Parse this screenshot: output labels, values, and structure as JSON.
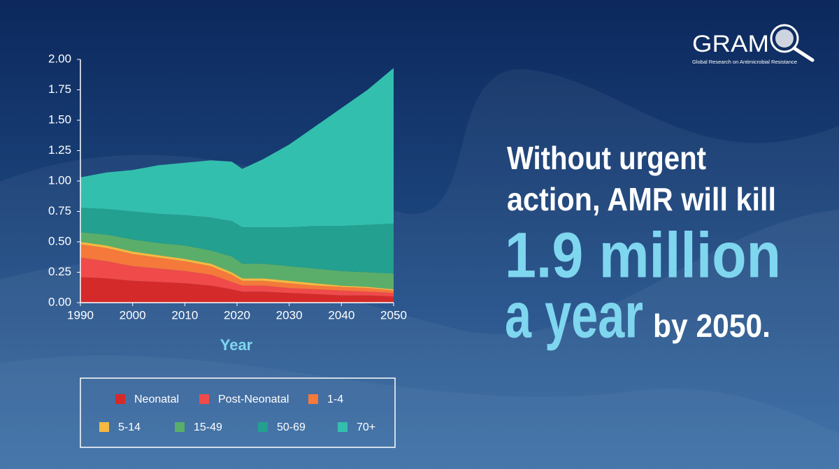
{
  "chart_data": {
    "type": "stacked-area",
    "x": [
      1990,
      1995,
      2000,
      2005,
      2010,
      2015,
      2019,
      2021,
      2025,
      2030,
      2035,
      2040,
      2045,
      2050
    ],
    "series": [
      {
        "name": "Neonatal",
        "color": "#d42a2a",
        "values": [
          0.21,
          0.2,
          0.18,
          0.17,
          0.16,
          0.14,
          0.11,
          0.09,
          0.09,
          0.08,
          0.07,
          0.06,
          0.06,
          0.05
        ]
      },
      {
        "name": "Post-Neonatal",
        "color": "#f04a4a",
        "values": [
          0.16,
          0.14,
          0.12,
          0.11,
          0.1,
          0.09,
          0.06,
          0.05,
          0.05,
          0.04,
          0.04,
          0.04,
          0.03,
          0.03
        ]
      },
      {
        "name": "1-4",
        "color": "#f5793a",
        "values": [
          0.11,
          0.11,
          0.1,
          0.09,
          0.08,
          0.07,
          0.06,
          0.04,
          0.04,
          0.04,
          0.03,
          0.03,
          0.03,
          0.02
        ]
      },
      {
        "name": "5-14",
        "color": "#f5b940",
        "values": [
          0.02,
          0.02,
          0.02,
          0.02,
          0.02,
          0.02,
          0.02,
          0.02,
          0.02,
          0.02,
          0.02,
          0.01,
          0.01,
          0.01
        ]
      },
      {
        "name": "15-49",
        "color": "#5aae6a",
        "values": [
          0.08,
          0.09,
          0.1,
          0.1,
          0.11,
          0.11,
          0.13,
          0.12,
          0.12,
          0.12,
          0.12,
          0.12,
          0.12,
          0.13
        ]
      },
      {
        "name": "50-69",
        "color": "#23a08f",
        "values": [
          0.2,
          0.21,
          0.23,
          0.24,
          0.25,
          0.27,
          0.29,
          0.3,
          0.3,
          0.32,
          0.35,
          0.37,
          0.39,
          0.41
        ]
      },
      {
        "name": "70+",
        "color": "#33bfae",
        "values": [
          0.25,
          0.3,
          0.34,
          0.4,
          0.43,
          0.47,
          0.49,
          0.48,
          0.56,
          0.68,
          0.82,
          0.97,
          1.11,
          1.28
        ]
      }
    ],
    "xlabel": "Year",
    "xlim": [
      1990,
      2050
    ],
    "xticks": [
      1990,
      2000,
      2010,
      2020,
      2030,
      2040,
      2050
    ],
    "ylim": [
      0,
      2
    ],
    "yticks": [
      {
        "value": 0,
        "label": "0.00"
      },
      {
        "value": 0.25,
        "label": "0.25"
      },
      {
        "value": 0.5,
        "label": "0.50"
      },
      {
        "value": 0.75,
        "label": "0.75"
      },
      {
        "value": 1,
        "label": "1.00"
      },
      {
        "value": 1.25,
        "label": "1.25"
      },
      {
        "value": 1.5,
        "label": "1.50"
      },
      {
        "value": 1.75,
        "label": "1.75"
      },
      {
        "value": 2,
        "label": "2.00"
      }
    ]
  },
  "headline": {
    "lines": [
      "Without urgent",
      "action, AMR will kill"
    ],
    "number": "1.9 million",
    "unit": "a year",
    "suffix": "by 2050."
  },
  "logo": {
    "name": "GRAM",
    "subtitle": "Global Research on Antimicrobial Resistance"
  }
}
